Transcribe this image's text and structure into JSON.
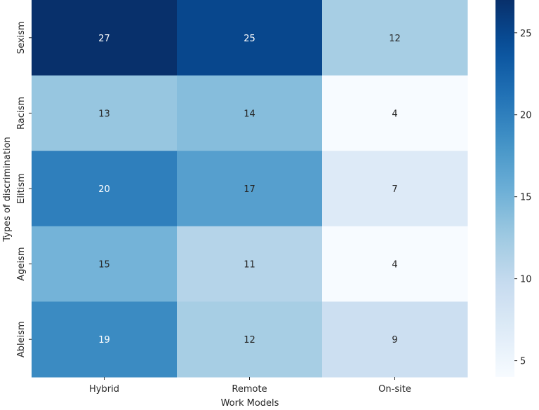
{
  "chart_data": {
    "type": "heatmap",
    "title": "",
    "xlabel": "Work Models",
    "ylabel": "Types of discrimination",
    "x_categories": [
      "Hybrid",
      "Remote",
      "On-site"
    ],
    "y_categories": [
      "Sexism",
      "Racism",
      "Elitism",
      "Ageism",
      "Ableism"
    ],
    "values": [
      [
        27,
        25,
        12
      ],
      [
        13,
        14,
        4
      ],
      [
        20,
        17,
        7
      ],
      [
        15,
        11,
        4
      ],
      [
        19,
        12,
        9
      ]
    ],
    "colormap": "Blues",
    "vmin": 4,
    "vmax": 27,
    "colorbar_ticks": [
      5,
      10,
      15,
      20,
      25
    ],
    "annotations": true
  }
}
